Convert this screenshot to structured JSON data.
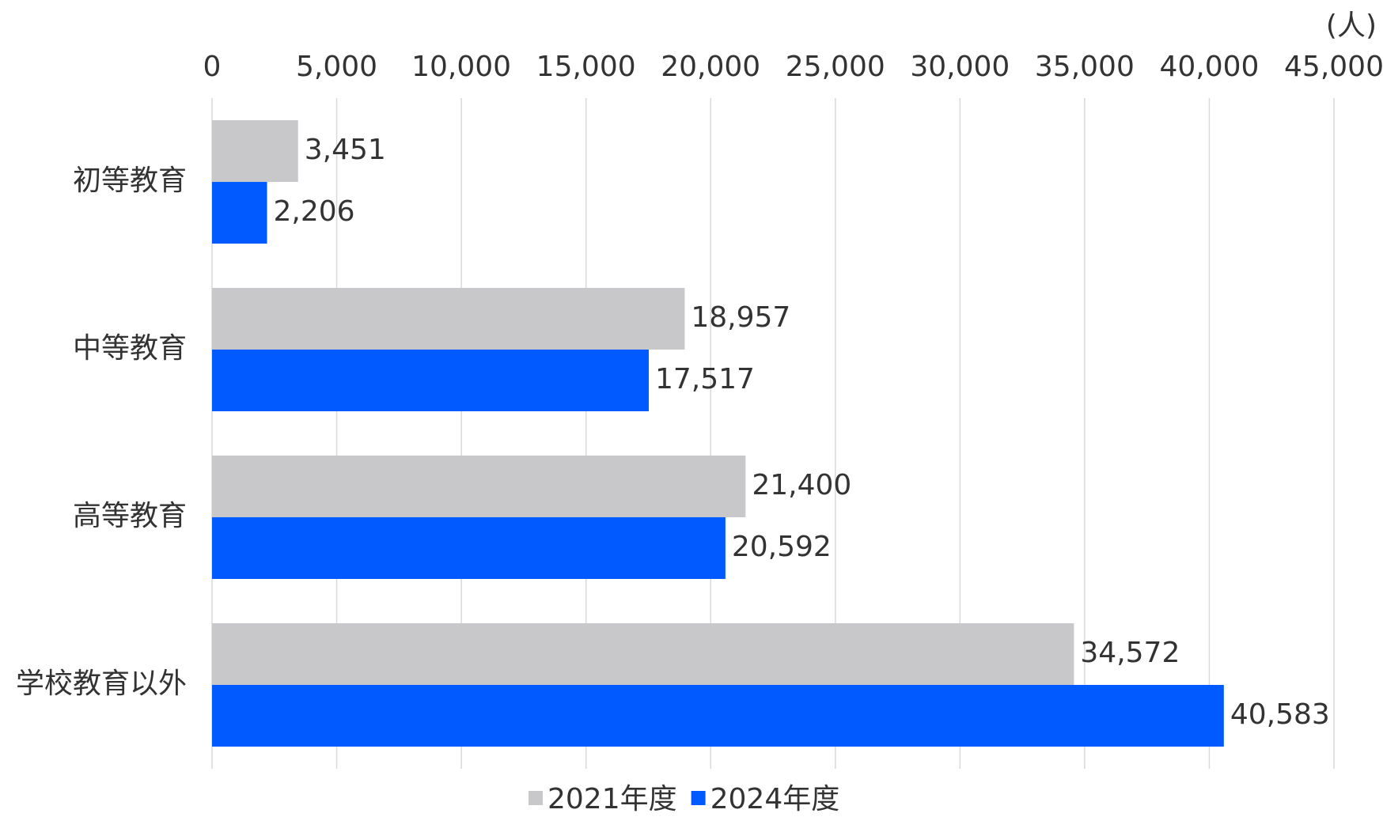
{
  "chart_data": {
    "type": "barh",
    "unit": "(人)",
    "categories": [
      "初等教育",
      "中等教育",
      "高等教育",
      "学校教育以外"
    ],
    "series": [
      {
        "name": "2021年度",
        "color": "#c8c8ca",
        "values": [
          3451,
          18957,
          21400,
          34572
        ],
        "value_labels": [
          "3,451",
          "18,957",
          "21,400",
          "34,572"
        ]
      },
      {
        "name": "2024年度",
        "color": "#005aff",
        "values": [
          2206,
          17517,
          20592,
          40583
        ],
        "value_labels": [
          "2,206",
          "17,517",
          "20,592",
          "40,583"
        ]
      }
    ],
    "xlim": [
      0,
      45000
    ],
    "xticks": [
      0,
      {
        "value": 5000,
        "label": "5,000"
      },
      {
        "value": 10000,
        "label": "10,000"
      },
      {
        "value": 15000,
        "label": "15,000"
      },
      {
        "value": 20000,
        "label": "20,000"
      },
      {
        "value": 25000,
        "label": "25,000"
      },
      {
        "value": 30000,
        "label": "30,000"
      },
      {
        "value": 35000,
        "label": "35,000"
      },
      {
        "value": 40000,
        "label": "40,000"
      },
      {
        "value": 45000,
        "label": "45,000"
      }
    ],
    "grid": true,
    "legend": "bottom"
  }
}
